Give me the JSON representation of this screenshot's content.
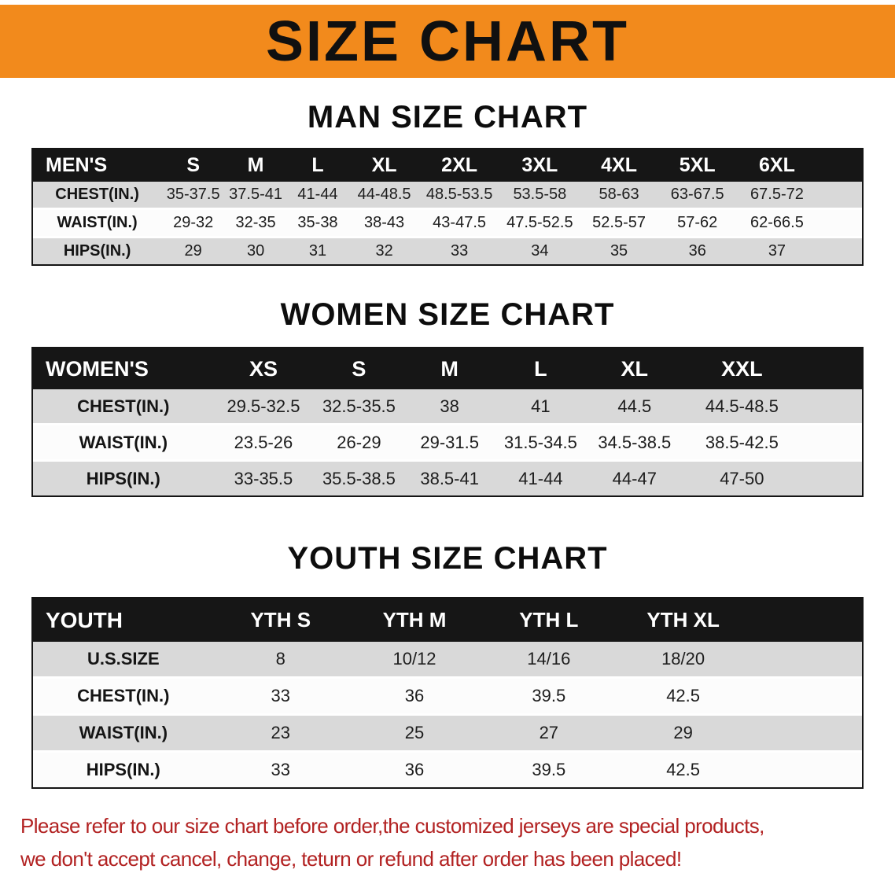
{
  "colors": {
    "banner_bg": "#f28a1c",
    "header_bg": "#161616",
    "row_gray": "#d9d9d9",
    "disclaimer_red": "#b22222"
  },
  "banner": {
    "title": "SIZE CHART"
  },
  "tables": {
    "men": {
      "heading": "MAN SIZE CHART",
      "header": [
        "MEN'S",
        "S",
        "M",
        "L",
        "XL",
        "2XL",
        "3XL",
        "4XL",
        "5XL",
        "6XL"
      ],
      "rows": [
        [
          "CHEST(IN.)",
          "35-37.5",
          "37.5-41",
          "41-44",
          "44-48.5",
          "48.5-53.5",
          "53.5-58",
          "58-63",
          "63-67.5",
          "67.5-72"
        ],
        [
          "WAIST(IN.)",
          "29-32",
          "32-35",
          "35-38",
          "38-43",
          "43-47.5",
          "47.5-52.5",
          "52.5-57",
          "57-62",
          "62-66.5"
        ],
        [
          "HIPS(IN.)",
          "29",
          "30",
          "31",
          "32",
          "33",
          "34",
          "35",
          "36",
          "37"
        ]
      ]
    },
    "women": {
      "heading": "WOMEN SIZE CHART",
      "header": [
        "WOMEN'S",
        "XS",
        "S",
        "M",
        "L",
        "XL",
        "XXL"
      ],
      "rows": [
        [
          "CHEST(IN.)",
          "29.5-32.5",
          "32.5-35.5",
          "38",
          "41",
          "44.5",
          "44.5-48.5"
        ],
        [
          "WAIST(IN.)",
          "23.5-26",
          "26-29",
          "29-31.5",
          "31.5-34.5",
          "34.5-38.5",
          "38.5-42.5"
        ],
        [
          "HIPS(IN.)",
          "33-35.5",
          "35.5-38.5",
          "38.5-41",
          "41-44",
          "44-47",
          "47-50"
        ]
      ]
    },
    "youth": {
      "heading": "YOUTH SIZE CHART",
      "header": [
        "YOUTH",
        "YTH S",
        "YTH M",
        "YTH L",
        "YTH XL"
      ],
      "rows": [
        [
          "U.S.SIZE",
          "8",
          "10/12",
          "14/16",
          "18/20"
        ],
        [
          "CHEST(IN.)",
          "33",
          "36",
          "39.5",
          "42.5"
        ],
        [
          "WAIST(IN.)",
          "23",
          "25",
          "27",
          "29"
        ],
        [
          "HIPS(IN.)",
          "33",
          "36",
          "39.5",
          "42.5"
        ]
      ]
    }
  },
  "disclaimer": {
    "line1": "Please refer to our size chart before order,the customized jerseys are special products,",
    "line2": "we don't accept cancel, change, teturn or refund after order has been placed!"
  }
}
